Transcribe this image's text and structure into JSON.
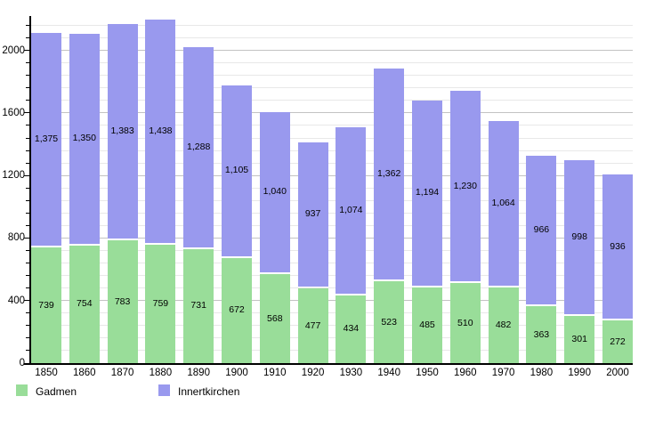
{
  "chart_data": {
    "type": "bar",
    "stacked": true,
    "title": "",
    "xlabel": "",
    "ylabel": "",
    "categories": [
      "1850",
      "1860",
      "1870",
      "1880",
      "1890",
      "1900",
      "1910",
      "1920",
      "1930",
      "1940",
      "1950",
      "1960",
      "1970",
      "1980",
      "1990",
      "2000"
    ],
    "series": [
      {
        "name": "Gadmen",
        "color": "#99dd99",
        "values": [
          739,
          754,
          783,
          759,
          731,
          672,
          568,
          477,
          434,
          523,
          485,
          510,
          482,
          363,
          301,
          272
        ]
      },
      {
        "name": "Innertkirchen",
        "color": "#9999ee",
        "values": [
          1375,
          1350,
          1383,
          1438,
          1288,
          1105,
          1040,
          937,
          1074,
          1362,
          1194,
          1230,
          1064,
          966,
          998,
          936
        ]
      }
    ],
    "ylim": [
      0,
      2220
    ],
    "ytick_major": 400,
    "ytick_minor": 80,
    "ytick_labels": [
      "0",
      "400",
      "800",
      "1200",
      "1600",
      "2000"
    ],
    "grid": "horizontal",
    "legend_position": "bottom-left",
    "value_labels": "inside-center"
  }
}
